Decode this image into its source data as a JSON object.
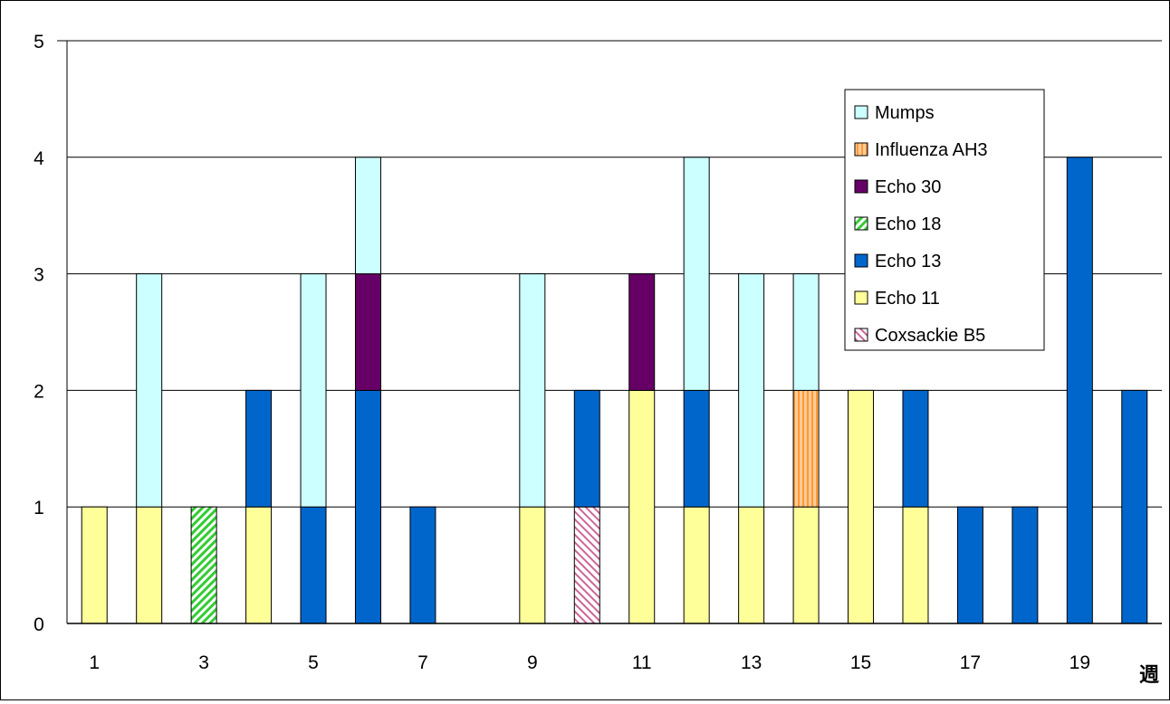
{
  "chart_data": {
    "type": "bar",
    "stacked": true,
    "xlabel": "週",
    "ylabel": "",
    "ylim": [
      0,
      5
    ],
    "yticks": [
      0,
      1,
      2,
      3,
      4,
      5
    ],
    "grid": "horizontal",
    "legend_position": "top-right",
    "categories": [
      "1",
      "2",
      "3",
      "4",
      "5",
      "6",
      "7",
      "8",
      "9",
      "10",
      "11",
      "12",
      "13",
      "14",
      "15",
      "16",
      "17",
      "18",
      "19",
      "20"
    ],
    "xtick_labels": [
      "1",
      "",
      "3",
      "",
      "5",
      "",
      "7",
      "",
      "9",
      "",
      "11",
      "",
      "13",
      "",
      "15",
      "",
      "17",
      "",
      "19",
      ""
    ],
    "series": [
      {
        "name": "Coxsackie B5",
        "color": "#cc6699",
        "pattern": "diagonal-fine",
        "values": [
          0,
          0,
          0,
          0,
          0,
          0,
          0,
          0,
          0,
          1,
          0,
          0,
          0,
          0,
          0,
          0,
          0,
          0,
          0,
          0
        ]
      },
      {
        "name": "Echo 11",
        "color": "#ffff99",
        "pattern": "solid",
        "values": [
          1,
          1,
          0,
          1,
          0,
          0,
          0,
          0,
          1,
          0,
          2,
          1,
          1,
          1,
          2,
          1,
          0,
          0,
          0,
          0
        ]
      },
      {
        "name": "Echo 13",
        "color": "#0066cc",
        "pattern": "solid",
        "values": [
          0,
          0,
          0,
          1,
          1,
          2,
          1,
          0,
          0,
          1,
          0,
          1,
          0,
          0,
          0,
          1,
          1,
          1,
          4,
          2
        ]
      },
      {
        "name": "Echo 18",
        "color": "#33cc33",
        "pattern": "diagonal",
        "values": [
          0,
          0,
          1,
          0,
          0,
          0,
          0,
          0,
          0,
          0,
          0,
          0,
          0,
          0,
          0,
          0,
          0,
          0,
          0,
          0
        ]
      },
      {
        "name": "Echo 30",
        "color": "#660066",
        "pattern": "solid",
        "values": [
          0,
          0,
          0,
          0,
          0,
          1,
          0,
          0,
          0,
          0,
          1,
          0,
          0,
          0,
          0,
          0,
          0,
          0,
          0,
          0
        ]
      },
      {
        "name": "Influenza AH3",
        "color": "#ff9933",
        "pattern": "vertical",
        "values": [
          0,
          0,
          0,
          0,
          0,
          0,
          0,
          0,
          0,
          0,
          0,
          0,
          0,
          1,
          0,
          0,
          0,
          0,
          0,
          0
        ]
      },
      {
        "name": "Mumps",
        "color": "#ccffff",
        "pattern": "solid",
        "values": [
          0,
          2,
          0,
          0,
          2,
          1,
          0,
          0,
          2,
          0,
          0,
          2,
          2,
          1,
          0,
          0,
          0,
          0,
          0,
          0
        ]
      }
    ],
    "legend_order": [
      "Mumps",
      "Influenza AH3",
      "Echo 30",
      "Echo 18",
      "Echo 13",
      "Echo 11",
      "Coxsackie B5"
    ]
  }
}
